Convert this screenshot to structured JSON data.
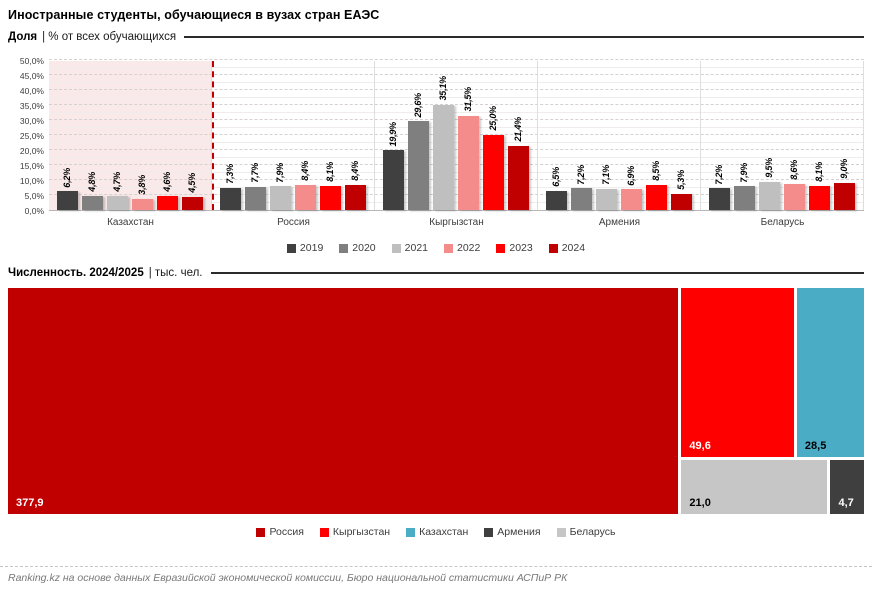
{
  "title": "Иностранные студенты, обучающиеся в вузах стран ЕАЭС",
  "sections": {
    "share": {
      "label_bold": "Доля",
      "label_rest": "| % от всех обучающихся"
    },
    "count": {
      "label_bold": "Численность. 2024/2025",
      "label_rest": "| тыс. чел."
    }
  },
  "chart_data": [
    {
      "id": "share",
      "type": "bar",
      "title": "Доля | % от всех обучающихся",
      "categories": [
        "Казахстан",
        "Россия",
        "Кыргызстан",
        "Армения",
        "Беларусь"
      ],
      "series": [
        {
          "name": "2019",
          "color": "#404040",
          "values": [
            6.2,
            7.3,
            19.9,
            6.5,
            7.2
          ],
          "labels": [
            "6,2%",
            "7,3%",
            "19,9%",
            "6,5%",
            "7,2%"
          ]
        },
        {
          "name": "2020",
          "color": "#7F7F7F",
          "values": [
            4.8,
            7.7,
            29.6,
            7.2,
            7.9
          ],
          "labels": [
            "4,8%",
            "7,7%",
            "29,6%",
            "7,2%",
            "7,9%"
          ]
        },
        {
          "name": "2021",
          "color": "#BFBFBF",
          "values": [
            4.7,
            7.9,
            35.1,
            7.1,
            9.5
          ],
          "labels": [
            "4,7%",
            "7,9%",
            "35,1%",
            "7,1%",
            "9,5%"
          ]
        },
        {
          "name": "2022",
          "color": "#F58C8C",
          "values": [
            3.8,
            8.4,
            31.5,
            6.9,
            8.6
          ],
          "labels": [
            "3,8%",
            "8,4%",
            "31,5%",
            "6,9%",
            "8,6%"
          ]
        },
        {
          "name": "2023",
          "color": "#FF0000",
          "values": [
            4.6,
            8.1,
            25.0,
            8.5,
            8.1
          ],
          "labels": [
            "4,6%",
            "8,1%",
            "25,0%",
            "8,5%",
            "8,1%"
          ]
        },
        {
          "name": "2024",
          "color": "#C00000",
          "values": [
            4.5,
            8.4,
            21.4,
            5.3,
            9.0
          ],
          "labels": [
            "4,5%",
            "8,4%",
            "21,4%",
            "5,3%",
            "9,0%"
          ]
        }
      ],
      "ylim": [
        0,
        50
      ],
      "yticks": [
        "0,0%",
        "5,0%",
        "10,0%",
        "15,0%",
        "20,0%",
        "25,0%",
        "30,0%",
        "35,0%",
        "40,0%",
        "45,0%",
        "50,0%"
      ],
      "grid": "horizontal dashed major every 5%, light solid minor every 2.5%",
      "legend_position": "bottom",
      "highlight": {
        "category": "Казахстан",
        "background": "#FAE9E9",
        "divider_color": "#C00000",
        "divider_style": "dashed"
      }
    },
    {
      "id": "count",
      "type": "treemap",
      "title": "Численность. 2024/2025 | тыс. чел.",
      "items": [
        {
          "name": "Россия",
          "value": 377.9,
          "label": "377,9",
          "color": "#C00000",
          "label_color": "#FFFFFF"
        },
        {
          "name": "Кыргызстан",
          "value": 49.6,
          "label": "49,6",
          "color": "#FF0000",
          "label_color": "#FFFFFF"
        },
        {
          "name": "Казахстан",
          "value": 28.5,
          "label": "28,5",
          "color": "#4BACC6",
          "label_color": "#000000"
        },
        {
          "name": "Армения",
          "value": 4.7,
          "label": "4,7",
          "color": "#3F3F3F",
          "label_color": "#FFFFFF"
        },
        {
          "name": "Беларусь",
          "value": 21.0,
          "label": "21,0",
          "color": "#C6C6C6",
          "label_color": "#000000"
        }
      ],
      "legend_position": "bottom"
    }
  ],
  "footer": "Ranking.kz на основе данных Евразийской экономической комиссии, Бюро национальной статистики АСПиР РК"
}
